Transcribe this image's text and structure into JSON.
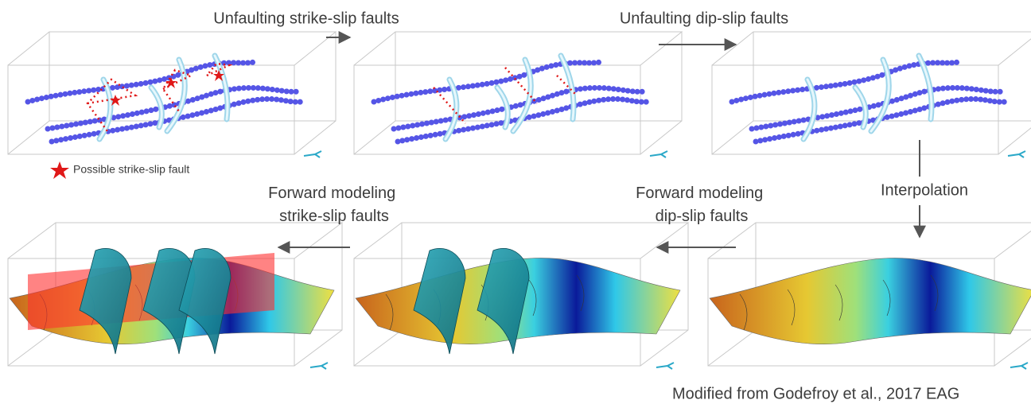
{
  "steps": [
    {
      "lines": [
        "Unfaulting strike-slip faults"
      ]
    },
    {
      "lines": [
        "Unfaulting dip-slip faults"
      ]
    },
    {
      "lines": [
        "Interpolation"
      ]
    },
    {
      "lines": [
        "Forward modeling",
        "dip-slip faults"
      ]
    },
    {
      "lines": [
        "Forward modeling",
        "strike-slip faults"
      ]
    }
  ],
  "legend": {
    "label": "Possible strike-slip fault"
  },
  "citation": "Modified from Godefroy et al., 2017 EAG"
}
